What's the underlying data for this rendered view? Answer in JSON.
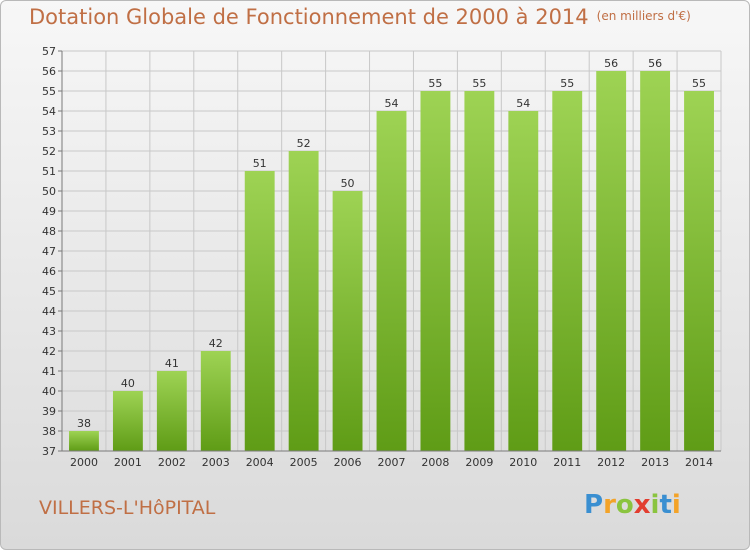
{
  "title": "Dotation Globale de Fonctionnement de 2000 à 2014",
  "unit": "(en milliers d'€)",
  "place": "VILLERS-L'HôPITAL",
  "brand": "Proxiti",
  "colors": {
    "title": "#c06f45",
    "bar_light": "#9ed354",
    "bar_dark": "#5f9c16",
    "grid": "#c8c8c8",
    "axis": "#7a7a7a",
    "text": "#333333"
  },
  "chart_data": {
    "type": "bar",
    "title": "Dotation Globale de Fonctionnement de 2000 à 2014",
    "subtitle": "(en milliers d'€)",
    "categories": [
      "2000",
      "2001",
      "2002",
      "2003",
      "2004",
      "2005",
      "2006",
      "2007",
      "2008",
      "2009",
      "2010",
      "2011",
      "2012",
      "2013",
      "2014"
    ],
    "values": [
      38,
      40,
      41,
      42,
      51,
      52,
      50,
      54,
      55,
      55,
      54,
      55,
      56,
      56,
      55
    ],
    "ylim": [
      37,
      57
    ],
    "yticks": [
      37,
      38,
      39,
      40,
      41,
      42,
      43,
      44,
      45,
      46,
      47,
      48,
      49,
      50,
      51,
      52,
      53,
      54,
      55,
      56,
      57
    ],
    "grid": true,
    "data_labels": true
  }
}
